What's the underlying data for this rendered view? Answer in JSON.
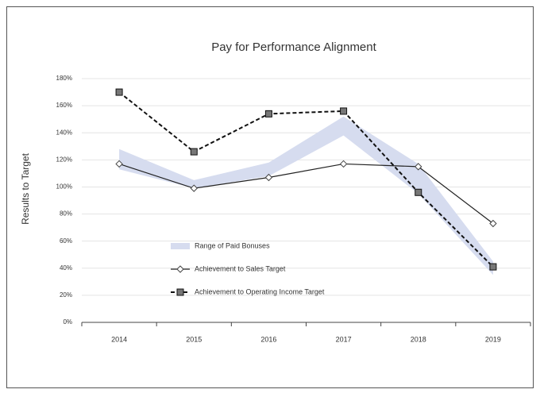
{
  "chart_data": {
    "type": "line",
    "title": "Pay for Performance Alignment",
    "y_label": "Results to Target",
    "categories": [
      "2014",
      "2015",
      "2016",
      "2017",
      "2018",
      "2019"
    ],
    "series": [
      {
        "name": "Range of Paid Bonuses",
        "color": "#d6dcef",
        "values": [
          128,
          105,
          118,
          152,
          117,
          45
        ],
        "lower": [
          113,
          99,
          108,
          138,
          95,
          35
        ]
      },
      {
        "name": "Achievement to Sales Target",
        "color": "#222222",
        "values": [
          117,
          99,
          107,
          117,
          115,
          73
        ]
      },
      {
        "name": "Achievement to Operating Income Target",
        "color": "#111111",
        "values": [
          170,
          126,
          154,
          156,
          96,
          41
        ]
      }
    ],
    "ylim": [
      0,
      180
    ],
    "yticks": [
      {
        "value": 0,
        "label": "0%"
      },
      {
        "value": 20,
        "label": "20%"
      },
      {
        "value": 40,
        "label": "40%"
      },
      {
        "value": 60,
        "label": "60%"
      },
      {
        "value": 80,
        "label": "80%"
      },
      {
        "value": 100,
        "label": "100%"
      },
      {
        "value": 120,
        "label": "120%"
      },
      {
        "value": 140,
        "label": "140%"
      },
      {
        "value": 160,
        "label": "160%"
      },
      {
        "value": 180,
        "label": "180%"
      }
    ],
    "grid": true
  }
}
